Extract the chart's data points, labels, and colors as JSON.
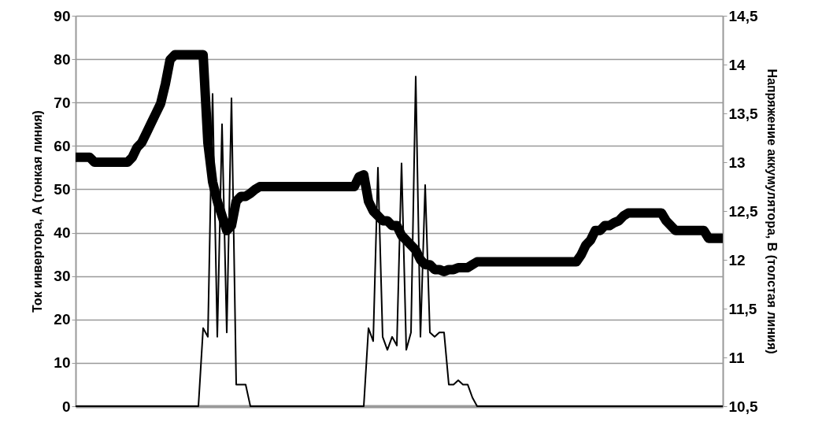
{
  "chart_data": {
    "type": "line",
    "ylabel": "Ток инвертора, А (тонкая линия)",
    "y2label": "Напряжение аккумулятора, В (толстая линия)",
    "categories": [
      null,
      null,
      null,
      null,
      null,
      null,
      null,
      null,
      null,
      null,
      null,
      null,
      null,
      null,
      null,
      null,
      null,
      null,
      null,
      null,
      null,
      null,
      null,
      null,
      null,
      null,
      null,
      null,
      null,
      null,
      null,
      null,
      null,
      null,
      null,
      null,
      null,
      null,
      null,
      null,
      null,
      null,
      null,
      null,
      null,
      null,
      null,
      null,
      null,
      null,
      null,
      null,
      null,
      null,
      null,
      null,
      null,
      null,
      null,
      null,
      null,
      null,
      null,
      null,
      null,
      null,
      null,
      null,
      null,
      null,
      null,
      null,
      null,
      null,
      null,
      null,
      null,
      null,
      null,
      null,
      null,
      null,
      null,
      null,
      null,
      null,
      null,
      null,
      null,
      null,
      null,
      null,
      null,
      null,
      null,
      null,
      null,
      null,
      null,
      null,
      null,
      null,
      null,
      null,
      null,
      null,
      null,
      null,
      null,
      null,
      null,
      null,
      null,
      null,
      null,
      null,
      null,
      null,
      null,
      null,
      null,
      null,
      null,
      null,
      null,
      null,
      null,
      null,
      null,
      null,
      null,
      null,
      null,
      null,
      null,
      null,
      null,
      null
    ],
    "series": [
      {
        "color": "#000000",
        "axis": "y2",
        "values": [
          13.05,
          13.05,
          13.05,
          13.05,
          13.0,
          13.0,
          13.0,
          13.0,
          13.0,
          13.0,
          13.0,
          13.0,
          13.05,
          13.15,
          13.2,
          13.3,
          13.4,
          13.5,
          13.6,
          13.8,
          14.05,
          14.1,
          14.1,
          14.1,
          14.1,
          14.1,
          14.1,
          14.1,
          13.2,
          12.8,
          12.6,
          12.45,
          12.3,
          12.35,
          12.6,
          12.65,
          12.65,
          12.68,
          12.72,
          12.75,
          12.75,
          12.75,
          12.75,
          12.75,
          12.75,
          12.75,
          12.75,
          12.75,
          12.75,
          12.75,
          12.75,
          12.75,
          12.75,
          12.75,
          12.75,
          12.75,
          12.75,
          12.75,
          12.75,
          12.75,
          12.85,
          12.87,
          12.6,
          12.5,
          12.45,
          12.4,
          12.4,
          12.35,
          12.35,
          12.25,
          12.2,
          12.15,
          12.1,
          12.0,
          11.95,
          11.95,
          11.9,
          11.9,
          11.88,
          11.9,
          11.9,
          11.92,
          11.92,
          11.92,
          11.95,
          11.98,
          11.98,
          11.98,
          11.98,
          11.98,
          11.98,
          11.98,
          11.98,
          11.98,
          11.98,
          11.98,
          11.98,
          11.98,
          11.98,
          11.98,
          11.98,
          11.98,
          11.98,
          11.98,
          11.98,
          11.98,
          11.98,
          12.05,
          12.15,
          12.2,
          12.3,
          12.3,
          12.35,
          12.35,
          12.38,
          12.4,
          12.45,
          12.48,
          12.48,
          12.48,
          12.48,
          12.48,
          12.48,
          12.48,
          12.48,
          12.4,
          12.35,
          12.3,
          12.3,
          12.3,
          12.3,
          12.3,
          12.3,
          12.3,
          12.22,
          12.22,
          12.22,
          12.22
        ]
      },
      {
        "color": "#000000",
        "values": [
          0,
          0,
          0,
          0,
          0,
          0,
          0,
          0,
          0,
          0,
          0,
          0,
          0,
          0,
          0,
          0,
          0,
          0,
          0,
          0,
          0,
          0,
          0,
          0,
          0,
          0,
          0,
          18,
          16,
          72,
          16,
          65,
          17,
          71,
          5,
          5,
          5,
          0,
          0,
          0,
          0,
          0,
          0,
          0,
          0,
          0,
          0,
          0,
          0,
          0,
          0,
          0,
          0,
          0,
          0,
          0,
          0,
          0,
          0,
          0,
          0,
          0,
          18,
          15,
          55,
          16,
          13,
          16,
          14,
          56,
          13,
          17,
          76,
          16,
          51,
          17,
          16,
          17,
          17,
          5,
          5,
          6,
          5,
          5,
          2,
          0,
          0,
          0,
          0,
          0,
          0,
          0,
          0,
          0,
          0,
          0,
          0,
          0,
          0,
          0,
          0,
          0,
          0,
          0,
          0,
          0,
          0,
          0,
          0,
          0,
          0,
          0,
          0,
          0,
          0,
          0,
          0,
          0,
          0,
          0,
          0,
          0,
          0,
          0,
          0,
          0,
          0,
          0,
          0,
          0,
          0,
          0,
          0,
          0,
          0,
          0,
          0,
          0
        ]
      }
    ],
    "ylim": [
      0,
      90
    ],
    "yticks": [
      0,
      10,
      20,
      30,
      40,
      50,
      60,
      70,
      80,
      90
    ],
    "y2lim": [
      10.5,
      14.5
    ],
    "y2ticks": [
      {
        "value": 10.5,
        "label": "10,5"
      },
      11,
      {
        "value": 11.5,
        "label": "11,5"
      },
      12,
      {
        "value": 12.5,
        "label": "12,5"
      },
      13,
      {
        "value": 13.5,
        "label": "13,5"
      },
      14,
      {
        "value": 14.5,
        "label": "14,5"
      }
    ],
    "grid": "y",
    "tick_labels": "y",
    "line_style": "solid",
    "marker": "none"
  }
}
